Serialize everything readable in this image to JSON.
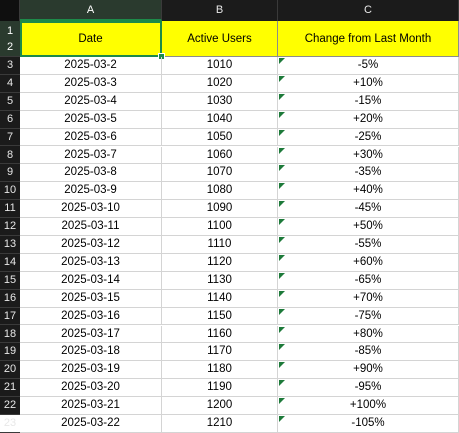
{
  "columns": [
    "A",
    "B",
    "C"
  ],
  "header_rows": [
    "1",
    "2"
  ],
  "headers": {
    "a": "Date",
    "b": "Active Users",
    "c": "Change from Last Month"
  },
  "rows": [
    {
      "num": "3",
      "date": "2025-03-2",
      "users": "1010",
      "change": "-5%"
    },
    {
      "num": "4",
      "date": "2025-03-3",
      "users": "1020",
      "change": "+10%"
    },
    {
      "num": "5",
      "date": "2025-03-4",
      "users": "1030",
      "change": "-15%"
    },
    {
      "num": "6",
      "date": "2025-03-5",
      "users": "1040",
      "change": "+20%"
    },
    {
      "num": "7",
      "date": "2025-03-6",
      "users": "1050",
      "change": "-25%"
    },
    {
      "num": "8",
      "date": "2025-03-7",
      "users": "1060",
      "change": "+30%"
    },
    {
      "num": "9",
      "date": "2025-03-8",
      "users": "1070",
      "change": "-35%"
    },
    {
      "num": "10",
      "date": "2025-03-9",
      "users": "1080",
      "change": "+40%"
    },
    {
      "num": "11",
      "date": "2025-03-10",
      "users": "1090",
      "change": "-45%"
    },
    {
      "num": "12",
      "date": "2025-03-11",
      "users": "1100",
      "change": "+50%"
    },
    {
      "num": "13",
      "date": "2025-03-12",
      "users": "1110",
      "change": "-55%"
    },
    {
      "num": "14",
      "date": "2025-03-13",
      "users": "1120",
      "change": "+60%"
    },
    {
      "num": "15",
      "date": "2025-03-14",
      "users": "1130",
      "change": "-65%"
    },
    {
      "num": "16",
      "date": "2025-03-15",
      "users": "1140",
      "change": "+70%"
    },
    {
      "num": "17",
      "date": "2025-03-16",
      "users": "1150",
      "change": "-75%"
    },
    {
      "num": "18",
      "date": "2025-03-17",
      "users": "1160",
      "change": "+80%"
    },
    {
      "num": "19",
      "date": "2025-03-18",
      "users": "1170",
      "change": "-85%"
    },
    {
      "num": "20",
      "date": "2025-03-19",
      "users": "1180",
      "change": "+90%"
    },
    {
      "num": "21",
      "date": "2025-03-20",
      "users": "1190",
      "change": "-95%"
    },
    {
      "num": "22",
      "date": "2025-03-21",
      "users": "1200",
      "change": "+100%"
    },
    {
      "num": "23",
      "date": "2025-03-22",
      "users": "1210",
      "change": "-105%"
    }
  ],
  "colors": {
    "header_fill": "#ffff00",
    "selection": "#1d8a4a",
    "headers_bg": "#1b1b1b",
    "number_as_text_marker": "#1d7a3a"
  }
}
